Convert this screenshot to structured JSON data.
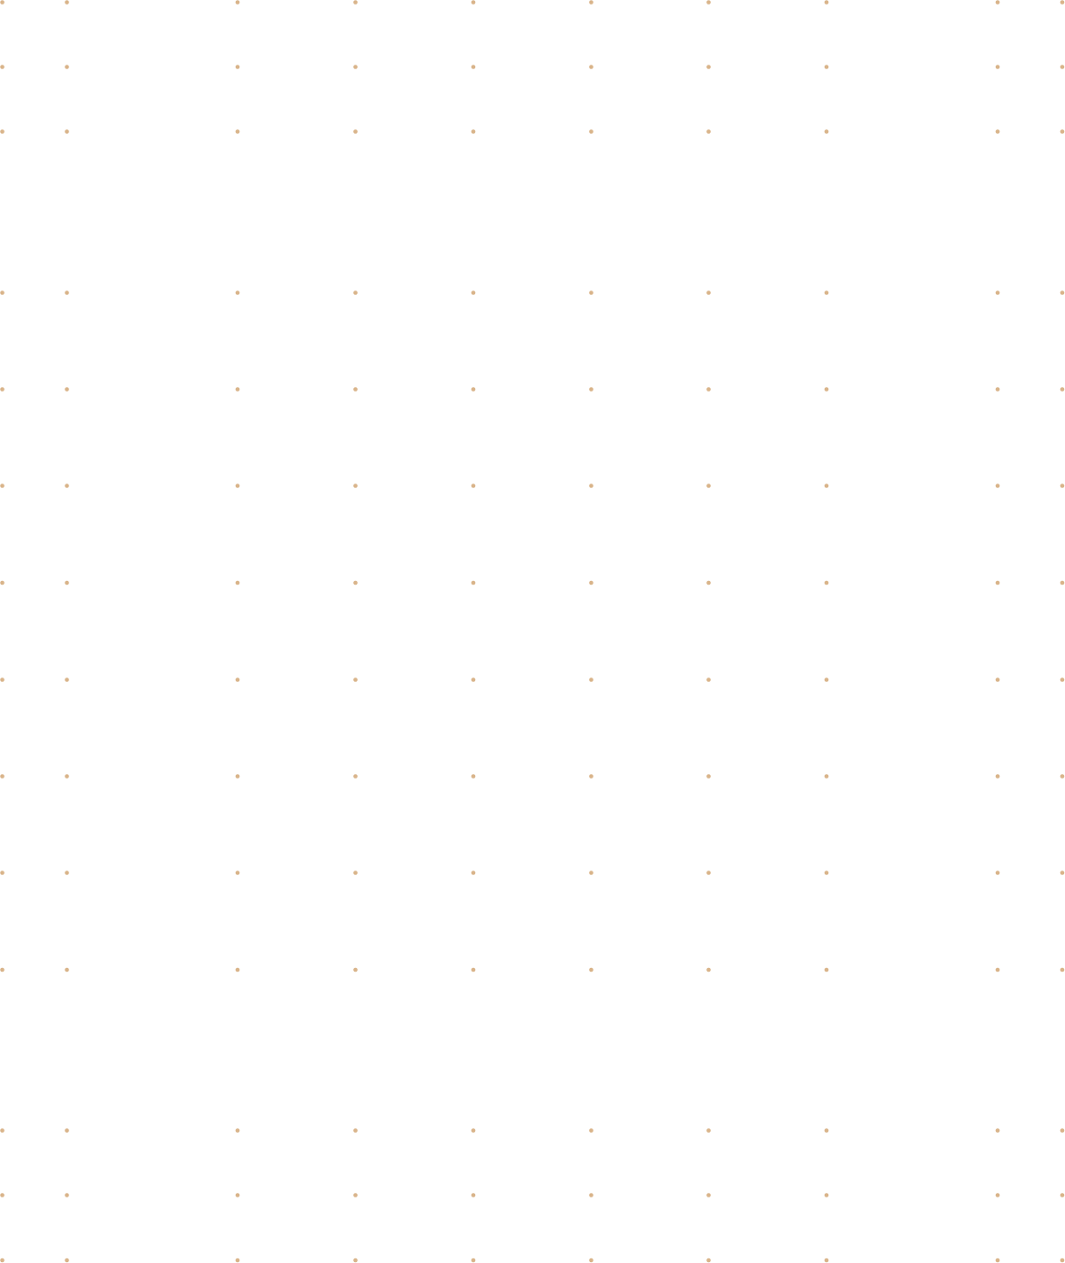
{
  "background": {
    "color": "#ffffff"
  },
  "dots": {
    "color": "#d9b48a"
  }
}
